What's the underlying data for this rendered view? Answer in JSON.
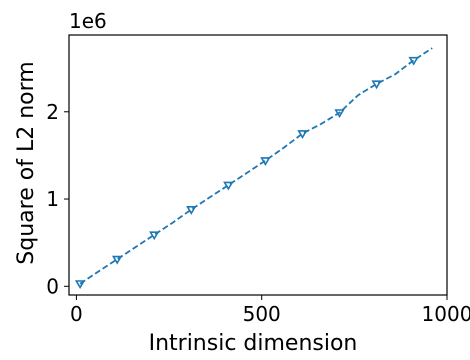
{
  "chart_data": {
    "type": "line",
    "title": "",
    "xlabel": "Intrinsic dimension",
    "ylabel": "Square of L2 norm",
    "y_offset_label": "1e6",
    "xlim": [
      -20,
      1000
    ],
    "ylim": [
      -0.1,
      2.88
    ],
    "x_ticks": [
      0,
      500,
      1000
    ],
    "x_tick_labels": [
      "0",
      "500",
      "1000"
    ],
    "y_ticks": [
      0,
      1,
      2
    ],
    "y_tick_labels": [
      "0",
      "1",
      "2"
    ],
    "grid": false,
    "legend": false,
    "line_style": "dashed",
    "marker": "open-triangle-down",
    "color": "#1f77b4",
    "series": [
      {
        "line_x": [
          10,
          60,
          110,
          160,
          210,
          260,
          310,
          360,
          410,
          460,
          510,
          560,
          610,
          660,
          710,
          760,
          810,
          860,
          910,
          960
        ],
        "line_y": [
          0.03,
          0.17,
          0.31,
          0.45,
          0.59,
          0.73,
          0.88,
          1.02,
          1.16,
          1.3,
          1.44,
          1.59,
          1.75,
          1.86,
          1.99,
          2.19,
          2.32,
          2.43,
          2.59,
          2.73
        ],
        "marker_x": [
          10,
          110,
          210,
          310,
          410,
          510,
          610,
          710,
          810,
          910
        ],
        "marker_y": [
          0.03,
          0.31,
          0.59,
          0.88,
          1.16,
          1.44,
          1.75,
          1.99,
          2.32,
          2.59
        ]
      }
    ]
  }
}
